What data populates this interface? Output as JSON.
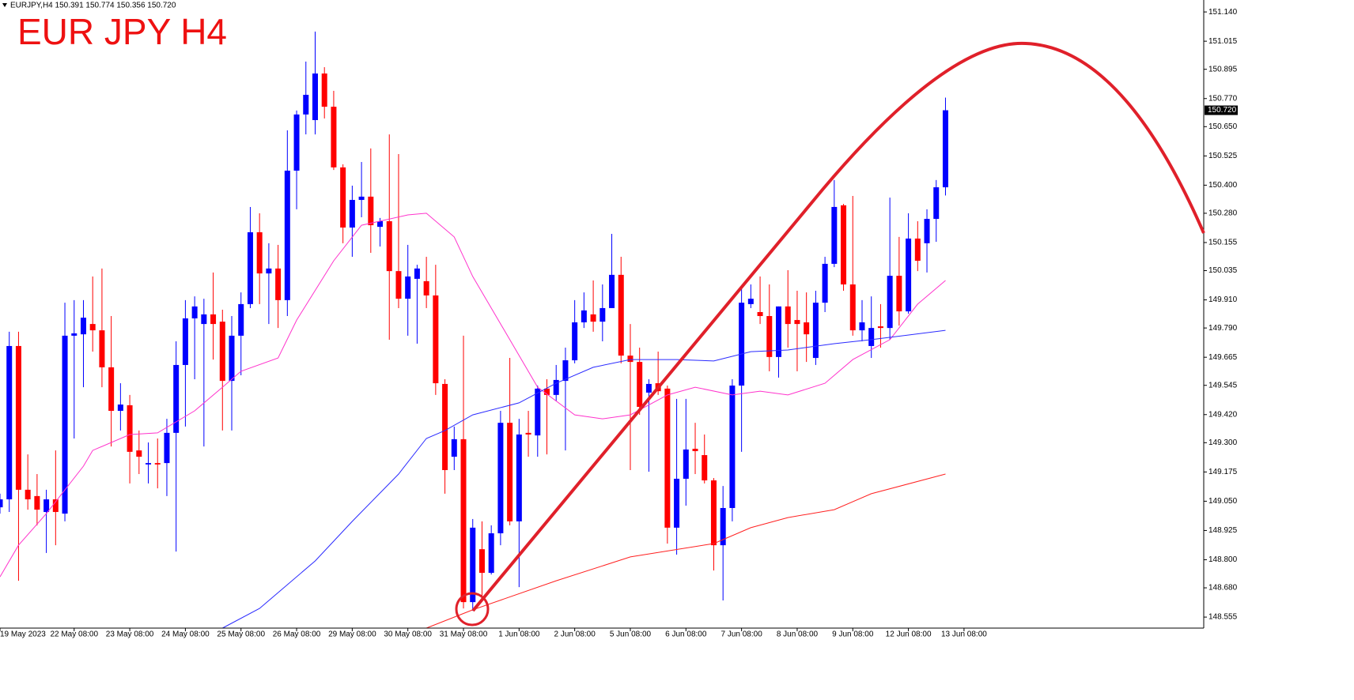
{
  "chart_data": {
    "type": "candlestick",
    "header": "EURJPY,H4  150.391 150.774 150.356 150.720",
    "title": "EUR JPY H4",
    "up_color": "#0000ff",
    "down_color": "#ff0000",
    "open": [
      149.024,
      149.058,
      149.713,
      149.099,
      149.072,
      149.004,
      149.058,
      148.997,
      149.757,
      149.763,
      149.807,
      149.78,
      149.622,
      149.436,
      149.46,
      149.267,
      149.207,
      149.213,
      149.213,
      149.342,
      149.632,
      149.831,
      149.807,
      149.848,
      149.817,
      149.564,
      149.757,
      149.892,
      150.199,
      150.023,
      150.044,
      149.909,
      150.462,
      150.702,
      150.678,
      150.877,
      150.735,
      150.476,
      150.219,
      150.337,
      150.351,
      150.222,
      150.246,
      150.033,
      149.915,
      150.0,
      149.99,
      149.929,
      149.551,
      149.24,
      149.315,
      148.619,
      148.845,
      148.744,
      148.913,
      149.385,
      148.964,
      149.342,
      149.331,
      149.531,
      149.504,
      149.564,
      149.652,
      149.814,
      149.848,
      149.817,
      149.875,
      150.017,
      149.672,
      149.645,
      149.514,
      149.554,
      149.531,
      148.937,
      149.146,
      149.274,
      149.247,
      149.139,
      148.862,
      149.021,
      149.544,
      149.892,
      149.858,
      149.841,
      149.666,
      149.882,
      149.824,
      149.814,
      149.662,
      149.898,
      150.064,
      150.314,
      149.976,
      149.78,
      149.713,
      149.797,
      149.79,
      150.013,
      149.861,
      150.172,
      150.152,
      150.256,
      150.391
    ],
    "high": [
      149.082,
      149.774,
      149.774,
      149.25,
      149.166,
      149.099,
      149.267,
      149.898,
      149.909,
      149.909,
      150.01,
      150.044,
      149.841,
      149.554,
      149.504,
      149.352,
      149.301,
      149.318,
      149.402,
      149.733,
      149.909,
      149.925,
      149.915,
      150.027,
      149.868,
      149.841,
      149.942,
      150.307,
      150.28,
      150.152,
      150.145,
      150.634,
      150.719,
      150.928,
      151.056,
      150.904,
      150.803,
      150.489,
      150.398,
      150.499,
      150.557,
      150.26,
      150.617,
      150.533,
      150.145,
      150.06,
      150.094,
      150.06,
      149.571,
      149.369,
      149.757,
      148.974,
      148.964,
      148.947,
      149.436,
      149.662,
      149.402,
      149.436,
      149.544,
      149.571,
      149.632,
      149.706,
      149.909,
      149.942,
      149.993,
      149.976,
      150.192,
      150.094,
      149.807,
      149.706,
      149.571,
      149.689,
      149.544,
      149.487,
      149.487,
      149.385,
      149.335,
      149.149,
      149.115,
      149.571,
      149.959,
      149.976,
      150.01,
      149.976,
      149.882,
      150.037,
      149.949,
      149.942,
      149.949,
      150.094,
      150.422,
      150.32,
      150.354,
      149.909,
      149.925,
      149.892,
      150.347,
      150.179,
      150.28,
      150.246,
      150.297,
      150.422,
      150.774
    ],
    "low": [
      148.997,
      149.004,
      148.71,
      149.014,
      148.947,
      148.829,
      148.862,
      148.964,
      149.318,
      149.537,
      149.689,
      149.537,
      149.284,
      149.352,
      149.126,
      149.166,
      149.126,
      149.105,
      149.072,
      148.835,
      149.369,
      149.571,
      149.284,
      149.655,
      149.352,
      149.352,
      149.588,
      149.875,
      149.892,
      149.807,
      149.79,
      149.841,
      150.297,
      150.617,
      150.617,
      150.685,
      150.465,
      150.152,
      150.094,
      150.263,
      150.111,
      150.138,
      149.74,
      149.875,
      149.757,
      149.723,
      149.875,
      149.504,
      149.082,
      149.183,
      148.592,
      148.582,
      148.626,
      148.737,
      148.862,
      148.947,
      148.683,
      149.24,
      149.24,
      149.25,
      149.477,
      149.267,
      149.639,
      149.79,
      149.774,
      149.733,
      149.875,
      149.639,
      149.183,
      149.419,
      149.176,
      149.504,
      148.869,
      148.822,
      149.031,
      149.166,
      149.126,
      148.754,
      148.626,
      148.964,
      149.261,
      149.875,
      149.807,
      149.605,
      149.578,
      149.706,
      149.605,
      149.645,
      149.632,
      149.858,
      150.05,
      149.949,
      149.757,
      149.733,
      149.662,
      149.706,
      149.74,
      149.8,
      149.851,
      150.033,
      150.027,
      150.158,
      150.356
    ],
    "close": [
      149.058,
      149.713,
      149.099,
      149.058,
      149.014,
      149.058,
      149.004,
      149.757,
      149.767,
      149.834,
      149.78,
      149.622,
      149.436,
      149.463,
      149.261,
      149.24,
      149.213,
      149.207,
      149.342,
      149.632,
      149.831,
      149.882,
      149.848,
      149.807,
      149.564,
      149.757,
      149.892,
      150.199,
      150.023,
      150.044,
      149.909,
      150.462,
      150.702,
      150.786,
      150.877,
      150.735,
      150.476,
      150.219,
      150.337,
      150.351,
      150.229,
      150.246,
      150.033,
      149.915,
      150.01,
      150.044,
      149.929,
      149.554,
      149.183,
      149.315,
      148.619,
      148.937,
      148.744,
      148.913,
      149.385,
      148.964,
      149.335,
      149.335,
      149.531,
      149.504,
      149.568,
      149.652,
      149.814,
      149.865,
      149.817,
      149.875,
      150.017,
      149.672,
      149.645,
      149.453,
      149.551,
      149.52,
      148.937,
      149.146,
      149.271,
      149.264,
      149.139,
      148.862,
      149.021,
      149.544,
      149.898,
      149.915,
      149.841,
      149.666,
      149.882,
      149.807,
      149.807,
      149.763,
      149.898,
      150.064,
      150.307,
      149.976,
      149.78,
      149.814,
      149.79,
      149.79,
      150.013,
      149.861,
      150.172,
      150.077,
      150.256,
      150.391,
      150.72
    ],
    "lines": [
      {
        "color": "#ff33cc",
        "x": [
          0,
          2,
          5,
          9,
          10,
          14,
          17,
          21,
          24,
          26,
          30,
          32,
          36,
          39,
          44,
          46,
          49,
          51,
          55,
          58,
          62,
          65,
          68,
          72,
          75,
          79,
          82,
          85,
          89,
          92,
          96,
          99,
          102
        ],
        "values": [
          148.727,
          148.862,
          148.997,
          149.2,
          149.267,
          149.335,
          149.342,
          149.436,
          149.537,
          149.605,
          149.662,
          149.824,
          150.077,
          150.229,
          150.273,
          150.28,
          150.179,
          150.01,
          149.74,
          149.537,
          149.419,
          149.402,
          149.419,
          149.504,
          149.537,
          149.504,
          149.52,
          149.504,
          149.554,
          149.655,
          149.74,
          149.892,
          149.993
        ]
      },
      {
        "color": "#2a2aff",
        "x": [
          24,
          28,
          34,
          38,
          43,
          46,
          48,
          51,
          56,
          60,
          64,
          68,
          73,
          77,
          81,
          85,
          90,
          94,
          102
        ],
        "values": [
          148.508,
          148.592,
          148.795,
          148.964,
          149.166,
          149.318,
          149.352,
          149.419,
          149.47,
          149.554,
          149.622,
          149.655,
          149.655,
          149.649,
          149.689,
          149.696,
          149.723,
          149.74,
          149.78
        ]
      },
      {
        "color": "#ff2020",
        "x": [
          46,
          51,
          60,
          68,
          77,
          81,
          85,
          90,
          94,
          102
        ],
        "values": [
          148.508,
          148.586,
          148.71,
          148.812,
          148.869,
          148.937,
          148.98,
          149.014,
          149.082,
          149.166
        ]
      }
    ],
    "last_price": {
      "value": 150.72,
      "label": "150.720"
    },
    "xlim": [
      0,
      129.86
    ],
    "xticks": [
      {
        "value": 0,
        "label": "19 May 2023"
      },
      {
        "value": 8,
        "label": "22 May 08:00"
      },
      {
        "value": 14,
        "label": "23 May 08:00"
      },
      {
        "value": 20,
        "label": "24 May 08:00"
      },
      {
        "value": 26,
        "label": "25 May 08:00"
      },
      {
        "value": 32,
        "label": "26 May 08:00"
      },
      {
        "value": 38,
        "label": "29 May 08:00"
      },
      {
        "value": 44,
        "label": "30 May 08:00"
      },
      {
        "value": 50,
        "label": "31 May 08:00"
      },
      {
        "value": 56,
        "label": "1 Jun 08:00"
      },
      {
        "value": 62,
        "label": "2 Jun 08:00"
      },
      {
        "value": 68,
        "label": "5 Jun 08:00"
      },
      {
        "value": 74,
        "label": "6 Jun 08:00"
      },
      {
        "value": 80,
        "label": "7 Jun 08:00"
      },
      {
        "value": 86,
        "label": "8 Jun 08:00"
      },
      {
        "value": 92,
        "label": "9 Jun 08:00"
      },
      {
        "value": 98,
        "label": "12 Jun 08:00"
      },
      {
        "value": 104,
        "label": "13 Jun 08:00"
      }
    ],
    "ylim": [
      148.508,
      151.191
    ],
    "yticks": [
      {
        "value": 151.14,
        "label": "151.140"
      },
      {
        "value": 151.015,
        "label": "151.015"
      },
      {
        "value": 150.895,
        "label": "150.895"
      },
      {
        "value": 150.77,
        "label": "150.770"
      },
      {
        "value": 150.65,
        "label": "150.650"
      },
      {
        "value": 150.525,
        "label": "150.525"
      },
      {
        "value": 150.4,
        "label": "150.400"
      },
      {
        "value": 150.28,
        "label": "150.280"
      },
      {
        "value": 150.155,
        "label": "150.155"
      },
      {
        "value": 150.035,
        "label": "150.035"
      },
      {
        "value": 149.91,
        "label": "149.910"
      },
      {
        "value": 149.79,
        "label": "149.790"
      },
      {
        "value": 149.665,
        "label": "149.665"
      },
      {
        "value": 149.545,
        "label": "149.545"
      },
      {
        "value": 149.42,
        "label": "149.420"
      },
      {
        "value": 149.3,
        "label": "149.300"
      },
      {
        "value": 149.175,
        "label": "149.175"
      },
      {
        "value": 149.05,
        "label": "149.050"
      },
      {
        "value": 148.925,
        "label": "148.925"
      },
      {
        "value": 148.8,
        "label": "148.800"
      },
      {
        "value": 148.68,
        "label": "148.680"
      },
      {
        "value": 148.555,
        "label": "148.555"
      }
    ]
  }
}
